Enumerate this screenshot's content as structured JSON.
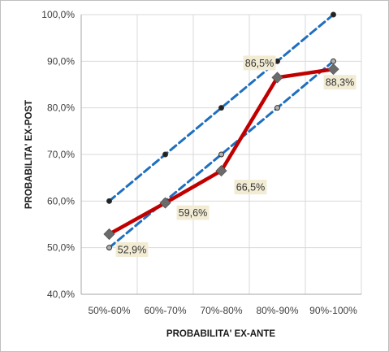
{
  "chart_data": {
    "type": "line",
    "xlabel": "PROBABILITA' EX-ANTE",
    "ylabel": "PROBABILITA' EX-POST",
    "categories": [
      "50%-60%",
      "60%-70%",
      "70%-80%",
      "80%-90%",
      "90%-100%"
    ],
    "ylim": [
      40,
      100
    ],
    "yticks": [
      40,
      50,
      60,
      70,
      80,
      90,
      100
    ],
    "ytick_labels": [
      "40,0%",
      "50,0%",
      "60,0%",
      "70,0%",
      "80,0%",
      "90,0%",
      "100,0%"
    ],
    "grid": true,
    "series": [
      {
        "values": [
          52.9,
          59.6,
          66.5,
          86.5,
          88.3
        ],
        "labels": [
          "52,9%",
          "59,6%",
          "66,5%",
          "86,5%",
          "88,3%"
        ],
        "color": "#c00000",
        "marker": "diamond",
        "marker_color": "#6b6b6b"
      },
      {
        "values": [
          60,
          70,
          80,
          90,
          100
        ],
        "color": "#1f6fbf",
        "dash": true,
        "marker": "circle",
        "marker_color": "#222222"
      },
      {
        "values": [
          50,
          60,
          70,
          80,
          90
        ],
        "color": "#1f6fbf",
        "dash": true,
        "marker": "circle",
        "marker_color": "#b0b0b0"
      }
    ]
  }
}
